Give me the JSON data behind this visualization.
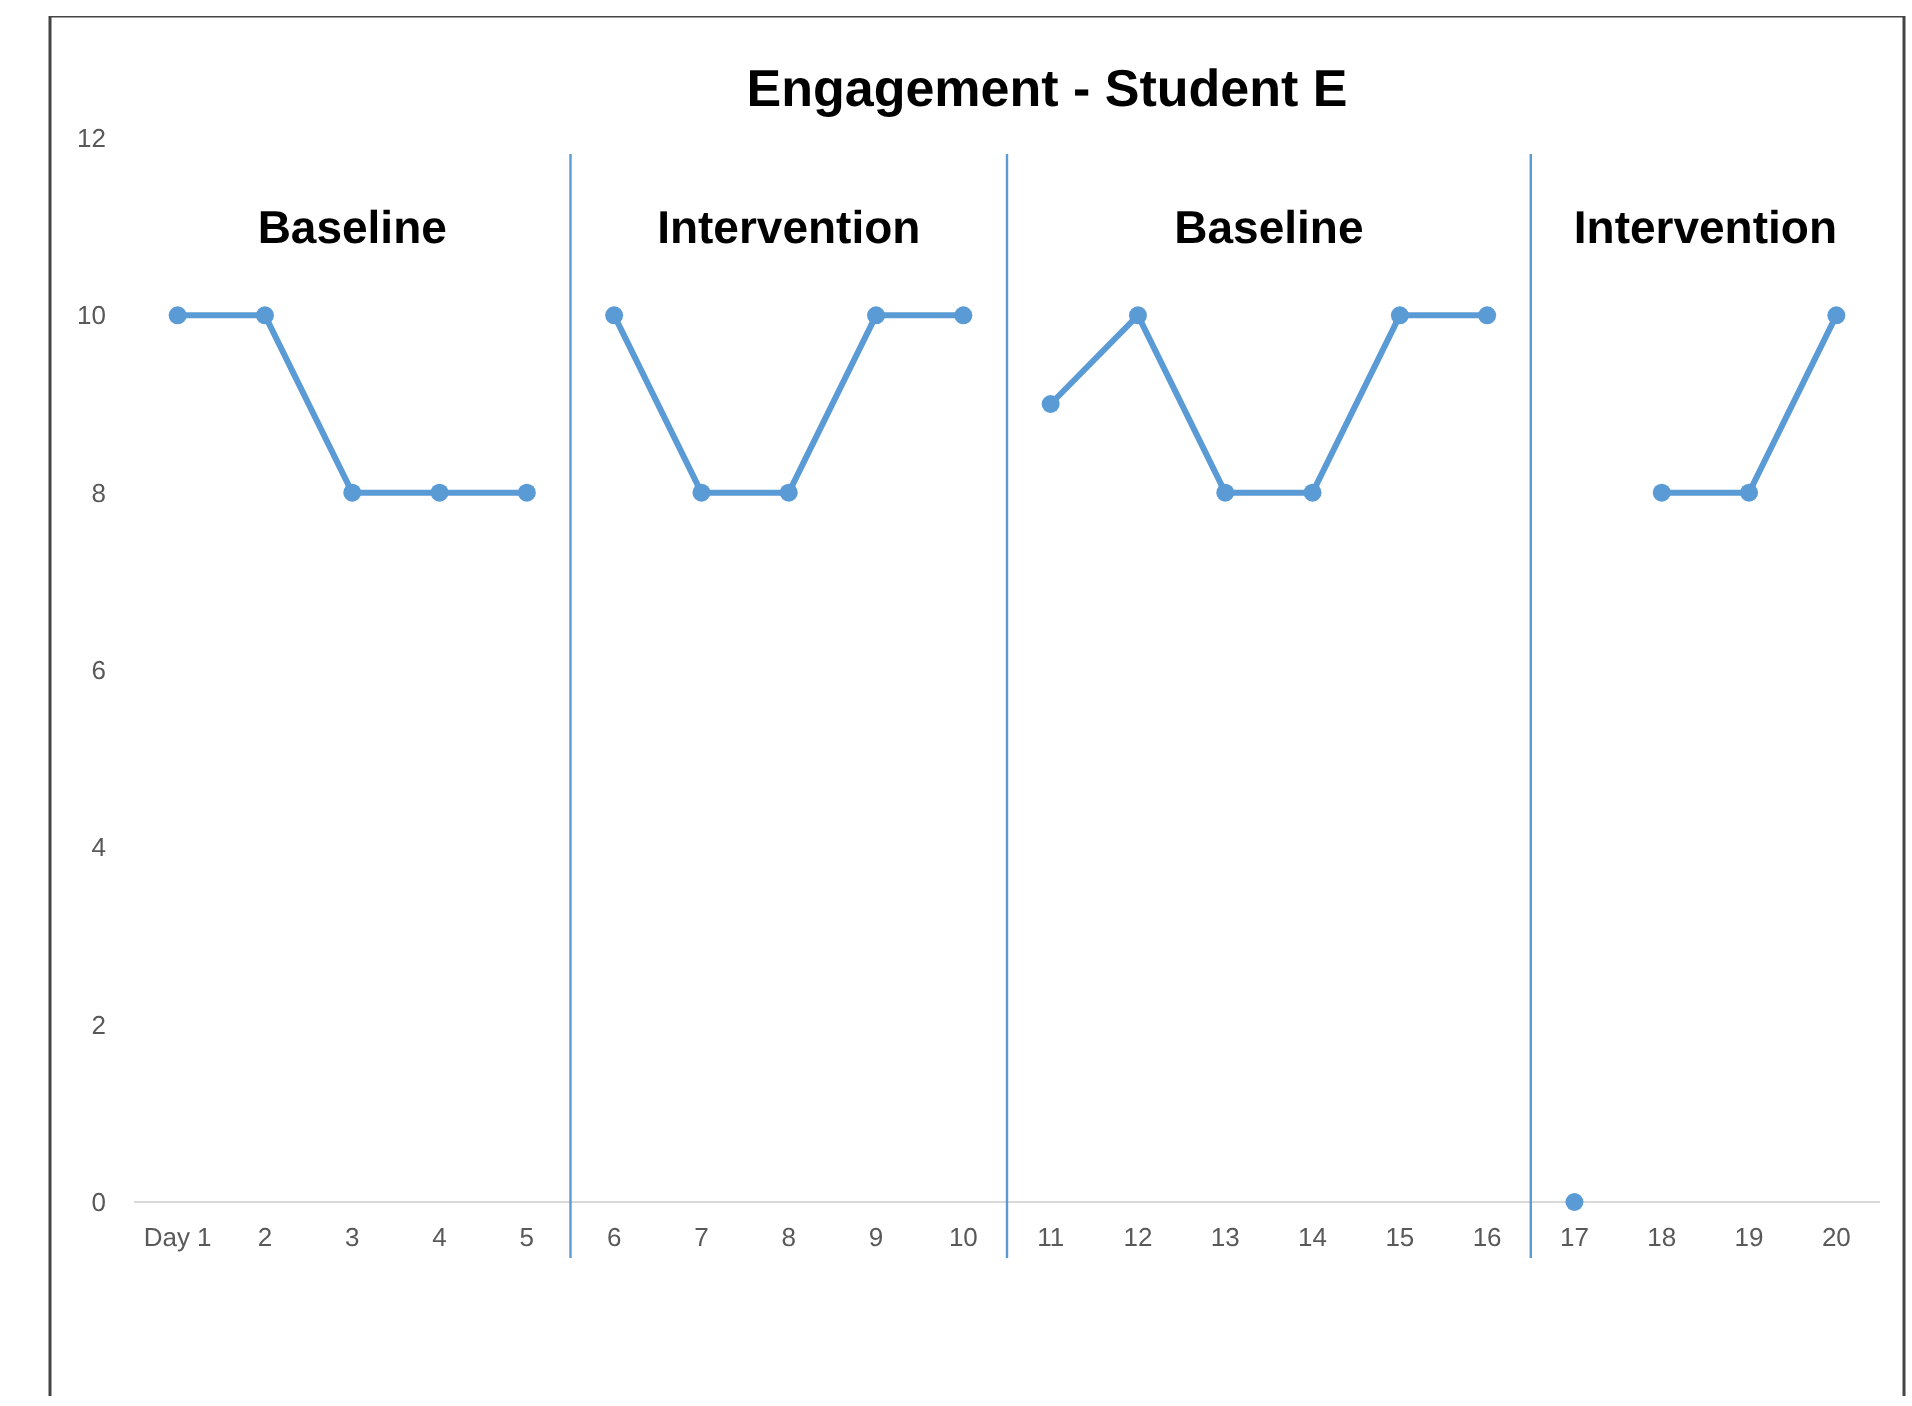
{
  "chart_data": {
    "type": "line",
    "title": "Engagement - Student E",
    "marker": "circle",
    "line_style": "solid",
    "xlim": [
      0.5,
      20.5
    ],
    "xticks": [
      {
        "value": 1,
        "label": "Day 1"
      },
      2,
      3,
      4,
      5,
      6,
      7,
      8,
      9,
      10,
      11,
      12,
      13,
      14,
      15,
      16,
      17,
      18,
      19,
      20
    ],
    "ylim": [
      0,
      12
    ],
    "yticks": [
      0,
      2,
      4,
      6,
      8,
      10,
      12
    ],
    "series": [
      {
        "color": "#5b9bd5",
        "x": [
          1,
          2,
          3,
          4,
          5
        ],
        "values": [
          10,
          10,
          8,
          8,
          8
        ]
      },
      {
        "color": "#5b9bd5",
        "x": [
          6,
          7,
          8,
          9,
          10
        ],
        "values": [
          10,
          8,
          8,
          10,
          10
        ]
      },
      {
        "color": "#5b9bd5",
        "x": [
          11,
          12,
          13,
          14,
          15,
          16
        ],
        "values": [
          9,
          10,
          8,
          8,
          10,
          10
        ]
      },
      {
        "color": "#5b9bd5",
        "x": [
          17
        ],
        "values": [
          0
        ]
      },
      {
        "color": "#5b9bd5",
        "x": [
          18,
          19,
          20
        ],
        "values": [
          8,
          8,
          10
        ]
      }
    ],
    "ref_lines": [
      {
        "axis": "x",
        "value": 5.5,
        "color": "#5b9bd5"
      },
      {
        "axis": "x",
        "value": 10.5,
        "color": "#5b9bd5"
      },
      {
        "axis": "x",
        "value": 16.5,
        "color": "#5b9bd5"
      }
    ],
    "annotations": [
      "Baseline",
      "Intervention",
      "Baseline",
      "Intervention"
    ]
  }
}
